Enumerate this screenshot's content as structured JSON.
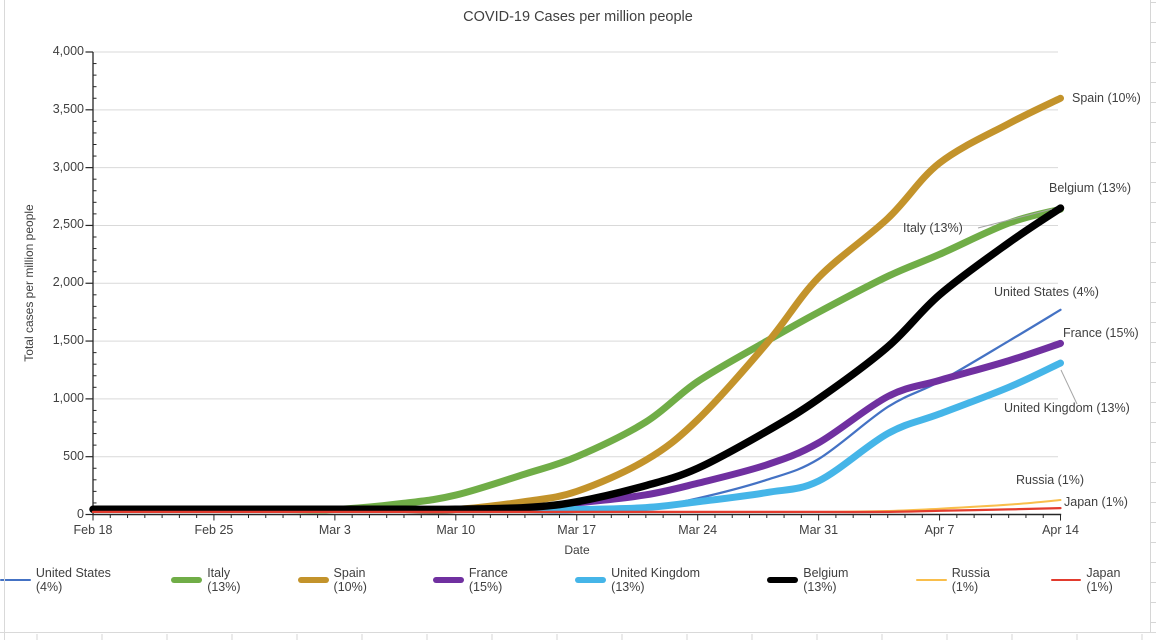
{
  "chart_data": {
    "type": "line",
    "title": "COVID-19 Cases per million people",
    "xlabel": "Date",
    "ylabel": "Total cases per million people",
    "ylim": [
      0,
      4000
    ],
    "x_range_dates": [
      "Feb 18",
      "Apr 14"
    ],
    "grid": "horizontal-major",
    "legend_position": "bottom",
    "y_tick_values": [
      0,
      500,
      1000,
      1500,
      2000,
      2500,
      3000,
      3500,
      4000
    ],
    "y_tick_labels": [
      "0",
      "500",
      "1,000",
      "1,500",
      "2,000",
      "2,500",
      "3,000",
      "3,500",
      "4,000"
    ],
    "x_tick_labels": [
      "Feb 18",
      "Feb 25",
      "Mar 3",
      "Mar 10",
      "Mar 17",
      "Mar 24",
      "Mar 31",
      "Apr 7",
      "Apr 14"
    ],
    "x_tick_days": [
      0,
      7,
      14,
      21,
      28,
      35,
      42,
      49,
      56
    ],
    "x_days": [
      0,
      4,
      7,
      11,
      14,
      18,
      21,
      25,
      28,
      32,
      35,
      39,
      42,
      46,
      49,
      53,
      56
    ],
    "series": [
      {
        "key": "us",
        "name": "United States (4%)",
        "color": "#4472C4",
        "thickness": "thin",
        "values": [
          0,
          0,
          0,
          0,
          0,
          1,
          3,
          9,
          20,
          60,
          140,
          300,
          480,
          930,
          1150,
          1500,
          1770
        ]
      },
      {
        "key": "italy",
        "name": "Italy (13%)",
        "color": "#70AD47",
        "thickness": "thick",
        "values": [
          0,
          1,
          5,
          19,
          43,
          97,
          168,
          350,
          500,
          800,
          1150,
          1500,
          1750,
          2060,
          2250,
          2520,
          2640
        ]
      },
      {
        "key": "spain",
        "name": "Spain (10%)",
        "color": "#C3932B",
        "thickness": "thick",
        "values": [
          0,
          0,
          0,
          1,
          4,
          9,
          36,
          112,
          200,
          470,
          820,
          1480,
          2050,
          2560,
          3040,
          3380,
          3600
        ]
      },
      {
        "key": "france",
        "name": "France (15%)",
        "color": "#7030A0",
        "thickness": "thick",
        "values": [
          0,
          0,
          0,
          1,
          4,
          14,
          27,
          60,
          100,
          170,
          270,
          430,
          620,
          1020,
          1160,
          1330,
          1480
        ]
      },
      {
        "key": "uk",
        "name": "United Kingdom (13%)",
        "color": "#45B5E8",
        "thickness": "thick",
        "values": [
          0,
          0,
          0,
          0,
          1,
          3,
          6,
          17,
          29,
          60,
          110,
          190,
          290,
          700,
          870,
          1100,
          1310
        ]
      },
      {
        "key": "belgium",
        "name": "Belgium (13%)",
        "color": "#000000",
        "thickness": "thick",
        "values": [
          0,
          0,
          0,
          0,
          1,
          8,
          23,
          60,
          110,
          250,
          400,
          720,
          1000,
          1450,
          1900,
          2350,
          2650
        ]
      },
      {
        "key": "russia",
        "name": "Russia (1%)",
        "color": "#F9BE4B",
        "thickness": "thin",
        "values": [
          0,
          0,
          0,
          0,
          0,
          0,
          0,
          1,
          1,
          2,
          3,
          8,
          16,
          30,
          50,
          85,
          125
        ]
      },
      {
        "key": "japan",
        "name": "Japan (1%)",
        "color": "#E23B2E",
        "thickness": "thin",
        "values": [
          1,
          1,
          1,
          2,
          2,
          3,
          5,
          6,
          7,
          8,
          9,
          11,
          16,
          22,
          32,
          44,
          55
        ]
      }
    ],
    "end_labels": [
      "Spain (10%)",
      "Belgium (13%)",
      "Italy (13%)",
      "United States (4%)",
      "France (15%)",
      "United Kingdom (13%)",
      "Russia (1%)",
      "Japan (1%)"
    ],
    "colors": {
      "gridline": "#D9D9D9",
      "axis": "#262626",
      "text": "#404040",
      "leader_line": "#A6A6A6",
      "sheet_gridline": "#D6D6D6"
    }
  }
}
